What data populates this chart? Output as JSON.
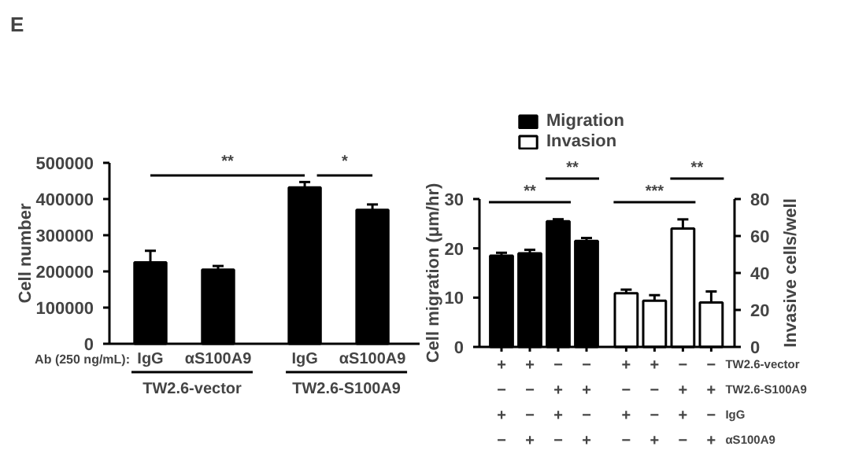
{
  "chart_data": [
    {
      "type": "bar",
      "ylabel": "Cell number",
      "categories": [
        "IgG",
        "αS100A9",
        "IgG",
        "αS100A9"
      ],
      "series": [
        {
          "color": "#000000",
          "values": [
            225000,
            205000,
            432000,
            370000
          ],
          "errors": [
            32000,
            10000,
            15000,
            15000
          ]
        }
      ],
      "ylim": [
        0,
        500000
      ],
      "yticks": [
        0,
        100000,
        200000,
        300000,
        400000,
        500000
      ],
      "annotations": [
        "E",
        "Ab (250 ng/mL):",
        "TW2.6-vector",
        "TW2.6-S100A9",
        "**",
        "*"
      ]
    },
    {
      "type": "bar",
      "ylabel": "Cell migration (μm/hr)",
      "y2label": "Invasive cells/well",
      "categories": [
        "+\n−\n+\n−",
        "+\n−\n−\n+",
        "−\n+\n+\n−",
        "−\n+\n−\n+",
        "+\n−\n+\n−",
        "+\n−\n−\n+",
        "−\n+\n+\n−",
        "−\n+\n−\n+"
      ],
      "series": [
        {
          "name": "Migration",
          "color": "#000000",
          "values": [
            18.5,
            19,
            25.5,
            21.5,
            null,
            null,
            null,
            null
          ],
          "errors": [
            0.6,
            0.7,
            0.4,
            0.6,
            null,
            null,
            null,
            null
          ]
        },
        {
          "name": "Invasion",
          "color": "#ffffff",
          "axis": "y2",
          "values": [
            null,
            null,
            null,
            null,
            29,
            25,
            64,
            24
          ],
          "errors": [
            null,
            null,
            null,
            null,
            2,
            3,
            5,
            6
          ]
        }
      ],
      "ylim": [
        0,
        30
      ],
      "yticks": [
        0,
        10,
        20,
        30
      ],
      "y2lim": [
        0,
        80
      ],
      "y2ticks": [
        0,
        20,
        40,
        60,
        80
      ],
      "legend": "top",
      "annotations": [
        "**",
        "**",
        "***",
        "**",
        "TW2.6-vector",
        "TW2.6-S100A9",
        "IgG",
        "αS100A9"
      ]
    }
  ]
}
